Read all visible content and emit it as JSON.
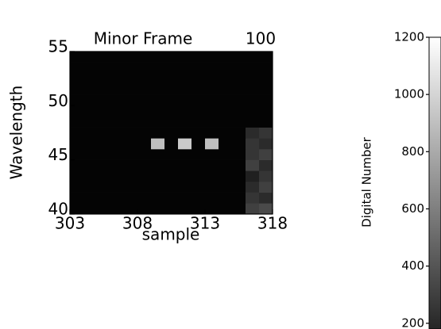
{
  "chart_data": {
    "type": "heatmap",
    "title": "Minor Frame",
    "frame_number": "100",
    "x_label": "sample",
    "y_label": "Wavelength",
    "xlim": [
      303,
      318
    ],
    "ylim": [
      40,
      55
    ],
    "xticks": [
      303,
      308,
      313,
      318
    ],
    "yticks": [
      40,
      45,
      50,
      55
    ],
    "z": [
      [
        20,
        20,
        20,
        20,
        20,
        20,
        20,
        20,
        20,
        20,
        20,
        20,
        20,
        300,
        350
      ],
      [
        20,
        20,
        20,
        20,
        20,
        20,
        20,
        20,
        20,
        20,
        20,
        20,
        20,
        250,
        200
      ],
      [
        20,
        20,
        20,
        20,
        20,
        20,
        20,
        20,
        20,
        20,
        20,
        20,
        20,
        200,
        300
      ],
      [
        20,
        20,
        20,
        20,
        20,
        20,
        20,
        20,
        20,
        20,
        20,
        20,
        20,
        150,
        250
      ],
      [
        20,
        20,
        20,
        20,
        20,
        20,
        20,
        20,
        20,
        20,
        20,
        20,
        20,
        300,
        200
      ],
      [
        20,
        20,
        20,
        20,
        20,
        20,
        20,
        20,
        20,
        20,
        20,
        20,
        20,
        250,
        300
      ],
      [
        20,
        20,
        20,
        20,
        20,
        20,
        900,
        20,
        950,
        20,
        900,
        20,
        20,
        250,
        200
      ],
      [
        20,
        20,
        20,
        20,
        20,
        20,
        20,
        20,
        20,
        20,
        20,
        20,
        20,
        200,
        250
      ],
      [
        20,
        20,
        20,
        20,
        20,
        20,
        20,
        20,
        20,
        20,
        20,
        20,
        20,
        20,
        20
      ],
      [
        20,
        20,
        20,
        20,
        20,
        20,
        20,
        20,
        20,
        20,
        20,
        20,
        20,
        20,
        20
      ],
      [
        20,
        20,
        20,
        20,
        20,
        20,
        20,
        20,
        20,
        20,
        20,
        20,
        20,
        20,
        20
      ],
      [
        20,
        20,
        20,
        20,
        20,
        20,
        20,
        20,
        20,
        20,
        20,
        20,
        20,
        20,
        20
      ],
      [
        20,
        20,
        20,
        20,
        20,
        20,
        20,
        20,
        20,
        20,
        20,
        20,
        20,
        20,
        20
      ],
      [
        20,
        20,
        20,
        20,
        20,
        20,
        20,
        20,
        20,
        20,
        20,
        20,
        20,
        20,
        20
      ],
      [
        20,
        20,
        20,
        20,
        20,
        20,
        20,
        20,
        20,
        20,
        20,
        20,
        20,
        20,
        20
      ]
    ],
    "colorbar": {
      "label": "Digital Number",
      "clim": [
        0,
        1200
      ],
      "ylim": [
        180,
        1200
      ],
      "ticks": [
        200,
        400,
        600,
        800,
        1000,
        1200
      ]
    }
  }
}
